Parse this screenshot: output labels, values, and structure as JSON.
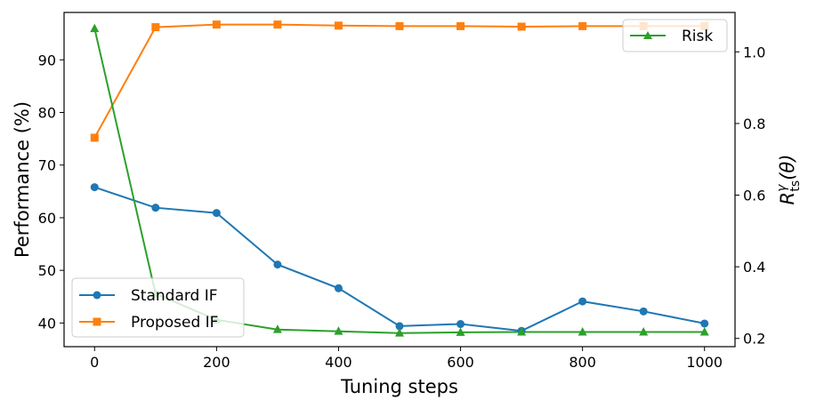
{
  "chart_data": {
    "type": "line",
    "xlabel": "Tuning steps",
    "ylabel_left": "Performance (%)",
    "ylabel_right_parts": {
      "base": "R",
      "sup": "γ",
      "sub": "ts",
      "arg": "(θ)"
    },
    "x": [
      0,
      100,
      200,
      300,
      400,
      500,
      600,
      700,
      800,
      900,
      1000
    ],
    "xlim": [
      -50,
      1050
    ],
    "ylim_left": [
      35.5,
      99
    ],
    "ylim_right": [
      0.177,
      1.11
    ],
    "x_ticks": [
      0,
      200,
      400,
      600,
      800,
      1000
    ],
    "y_ticks_left": [
      40,
      50,
      60,
      70,
      80,
      90
    ],
    "y_ticks_right": [
      "0.2",
      "0.4",
      "0.6",
      "0.8",
      "1.0"
    ],
    "series": [
      {
        "name": "Standard IF",
        "axis": "left",
        "color": "#1f77b4",
        "marker": "circle",
        "values": [
          65.8,
          61.9,
          60.9,
          51.1,
          46.6,
          39.4,
          39.8,
          38.5,
          44.1,
          42.2,
          39.9
        ]
      },
      {
        "name": "Proposed IF",
        "axis": "left",
        "color": "#ff7f0e",
        "marker": "square",
        "values": [
          75.2,
          96.2,
          96.7,
          96.7,
          96.5,
          96.4,
          96.4,
          96.3,
          96.4,
          96.4,
          96.4
        ]
      },
      {
        "name": "Risk",
        "axis": "right",
        "color": "#2ca02c",
        "marker": "triangle",
        "values": [
          1.065,
          0.325,
          0.252,
          0.225,
          0.22,
          0.215,
          0.217,
          0.218,
          0.218,
          0.218,
          0.218
        ]
      }
    ],
    "legend_left": [
      "Standard IF",
      "Proposed IF"
    ],
    "legend_right": [
      "Risk"
    ]
  }
}
